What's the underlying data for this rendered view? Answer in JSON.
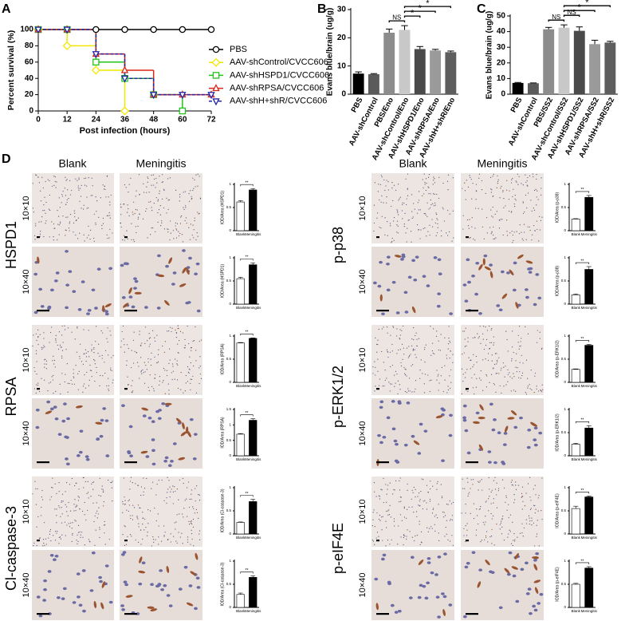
{
  "chart_data": [
    {
      "type": "line",
      "panel": "A",
      "step": true,
      "ylabel": "Percent survival (%)",
      "xlabel": "Post infection (hours)",
      "x": [
        0,
        12,
        24,
        36,
        48,
        60,
        72
      ],
      "xlim": [
        0,
        72
      ],
      "xticks": [
        0,
        12,
        24,
        36,
        48,
        60,
        72
      ],
      "ylim": [
        0,
        100
      ],
      "yticks": [
        0,
        20,
        40,
        60,
        80,
        100
      ],
      "legend": "right",
      "series": [
        {
          "name": "PBS",
          "color": "#000000",
          "marker": "circle",
          "values": [
            100,
            100,
            100,
            100,
            100,
            100,
            100
          ]
        },
        {
          "name": "AAV-shControl/CVCC606",
          "color": "#f5e600",
          "marker": "diamond",
          "values": [
            100,
            80,
            50,
            0,
            null,
            null,
            null
          ]
        },
        {
          "name": "AAV-shHSPD1/CVCC606",
          "color": "#22c41c",
          "marker": "square",
          "values": [
            100,
            100,
            60,
            40,
            20,
            0,
            null
          ]
        },
        {
          "name": "AAV-shRPSA/CVCC606",
          "color": "#d9261c",
          "marker": "triangle",
          "values": [
            100,
            100,
            70,
            50,
            20,
            20,
            20
          ]
        },
        {
          "name": "AAV-shH+shR/CVCC606",
          "color": "#2424a8",
          "marker": "triangle-down",
          "dashed": true,
          "values": [
            100,
            100,
            70,
            40,
            20,
            20,
            20
          ]
        }
      ]
    },
    {
      "type": "bar",
      "panel": "B",
      "ylabel": "Evans blue/brain (ug/g)",
      "ylim": [
        0,
        30
      ],
      "yticks": [
        0,
        10,
        20,
        30
      ],
      "categories": [
        "PBS",
        "AAV-shControl",
        "PBS/Eno",
        "AAV-shControl/Eno",
        "AAV-shHSPD1/Eno",
        "AAV-shRPSA/Eno",
        "AAV-shH+shR/Eno"
      ],
      "values": [
        7.3,
        7.1,
        21.8,
        22.8,
        16.0,
        15.5,
        14.9
      ],
      "errors": [
        0.6,
        0.2,
        1.3,
        1.5,
        0.9,
        0.4,
        0.4
      ],
      "colors": [
        "#000000",
        "#5a5a5a",
        "#8c8c8c",
        "#c8c8c8",
        "#4a4a4a",
        "#9a9a9a",
        "#5e5e5e"
      ],
      "brackets": [
        {
          "label": "NS",
          "pair": [
            2,
            3
          ]
        },
        {
          "label": "*",
          "pair": [
            3,
            4
          ]
        },
        {
          "label": "*",
          "pair": [
            3,
            5
          ]
        },
        {
          "label": "*",
          "pair": [
            3,
            6
          ]
        }
      ]
    },
    {
      "type": "bar",
      "panel": "C",
      "ylabel": "Evans blue/brain (ug/g)",
      "ylim": [
        0,
        50
      ],
      "yticks": [
        0,
        10,
        20,
        30,
        40,
        50
      ],
      "categories": [
        "PBS",
        "AAV-shControl",
        "PBS/SS2",
        "AAV-shControl/SS2",
        "AAV-shHSPD1/SS2",
        "AAV-shRPSA/SS2",
        "AAV-shH+shR/SS2"
      ],
      "values": [
        7.2,
        7.0,
        41.5,
        42.5,
        40.5,
        32.0,
        33.0
      ],
      "errors": [
        0.3,
        0.2,
        1.2,
        1.8,
        2.5,
        2.5,
        0.8
      ],
      "colors": [
        "#000000",
        "#5a5a5a",
        "#8c8c8c",
        "#c8c8c8",
        "#4a4a4a",
        "#9a9a9a",
        "#5e5e5e"
      ],
      "brackets": [
        {
          "label": "NS",
          "pair": [
            2,
            3
          ]
        },
        {
          "label": "NS",
          "pair": [
            3,
            4
          ]
        },
        {
          "label": "*",
          "pair": [
            3,
            5
          ]
        },
        {
          "label": "*",
          "pair": [
            3,
            6
          ]
        }
      ]
    },
    {
      "type": "small-bar",
      "ylabel": "IOD/Area (HSPD1)",
      "categories": [
        "Blank",
        "Meningitis"
      ],
      "values": [
        0.62,
        0.88
      ],
      "errors": [
        0.03,
        0.03
      ],
      "colors": [
        "#ffffff",
        "#000000"
      ],
      "ylim": [
        0,
        1
      ],
      "yticks": [
        0,
        0.5,
        1
      ],
      "brackets": [
        {
          "label": "**",
          "pair": [
            0,
            1
          ]
        }
      ]
    },
    {
      "type": "small-bar",
      "ylabel": "IOD/Area (HSPD1)",
      "categories": [
        "Blank",
        "Meningitis"
      ],
      "values": [
        0.55,
        0.85
      ],
      "errors": [
        0.03,
        0.04
      ],
      "colors": [
        "#ffffff",
        "#000000"
      ],
      "ylim": [
        0,
        1
      ],
      "yticks": [
        0,
        0.5,
        1
      ],
      "brackets": [
        {
          "label": "**",
          "pair": [
            0,
            1
          ]
        }
      ]
    },
    {
      "type": "small-bar",
      "ylabel": "IOD/Area (RPSA)",
      "categories": [
        "Blank",
        "Meningitis"
      ],
      "values": [
        0.85,
        0.95
      ],
      "errors": [
        0.01,
        0.01
      ],
      "colors": [
        "#ffffff",
        "#000000"
      ],
      "ylim": [
        0,
        1
      ],
      "yticks": [
        0,
        0.5,
        1
      ],
      "brackets": [
        {
          "label": "**",
          "pair": [
            0,
            1
          ]
        }
      ]
    },
    {
      "type": "small-bar",
      "ylabel": "IOD/Area (RPSA)",
      "categories": [
        "Blank",
        "Meningitis"
      ],
      "values": [
        0.7,
        1.15
      ],
      "errors": [
        0.02,
        0.05
      ],
      "colors": [
        "#ffffff",
        "#000000"
      ],
      "ylim": [
        0,
        1.5
      ],
      "yticks": [
        0,
        0.5,
        1,
        1.5
      ],
      "brackets": [
        {
          "label": "**",
          "pair": [
            0,
            1
          ]
        }
      ]
    },
    {
      "type": "small-bar",
      "ylabel": "IOD/Area (Cl-caspase-3)",
      "categories": [
        "Blank",
        "Meningitis"
      ],
      "values": [
        0.25,
        0.7
      ],
      "errors": [
        0.01,
        0.05
      ],
      "colors": [
        "#ffffff",
        "#000000"
      ],
      "ylim": [
        0,
        1
      ],
      "yticks": [
        0,
        0.5,
        1
      ],
      "brackets": [
        {
          "label": "**",
          "pair": [
            0,
            1
          ]
        }
      ]
    },
    {
      "type": "small-bar",
      "ylabel": "IOD/Area (Cl-caspase-3)",
      "categories": [
        "Blank",
        "Meningitis"
      ],
      "values": [
        0.28,
        0.65
      ],
      "errors": [
        0.03,
        0.03
      ],
      "colors": [
        "#ffffff",
        "#000000"
      ],
      "ylim": [
        0,
        1
      ],
      "yticks": [
        0,
        0.5,
        1
      ],
      "brackets": [
        {
          "label": "**",
          "pair": [
            0,
            1
          ]
        }
      ]
    },
    {
      "type": "small-bar",
      "ylabel": "IOD/Area (p-p38)",
      "categories": [
        "Blank",
        "Meningitis"
      ],
      "values": [
        0.25,
        0.72
      ],
      "errors": [
        0.01,
        0.04
      ],
      "colors": [
        "#ffffff",
        "#000000"
      ],
      "ylim": [
        0,
        1
      ],
      "yticks": [
        0,
        0.5,
        1
      ],
      "brackets": [
        {
          "label": "**",
          "pair": [
            0,
            1
          ]
        }
      ]
    },
    {
      "type": "small-bar",
      "ylabel": "IOD/Area (p-p38)",
      "categories": [
        "Blank",
        "Meningitis"
      ],
      "values": [
        0.2,
        0.75
      ],
      "errors": [
        0.02,
        0.06
      ],
      "colors": [
        "#ffffff",
        "#000000"
      ],
      "ylim": [
        0,
        1
      ],
      "yticks": [
        0,
        0.5,
        1
      ],
      "brackets": [
        {
          "label": "**",
          "pair": [
            0,
            1
          ]
        }
      ]
    },
    {
      "type": "small-bar",
      "ylabel": "IOD/Area (p-ERK1/2)",
      "categories": [
        "Blank",
        "Meningitis"
      ],
      "values": [
        0.28,
        0.8
      ],
      "errors": [
        0.01,
        0.02
      ],
      "colors": [
        "#ffffff",
        "#000000"
      ],
      "ylim": [
        0,
        1
      ],
      "yticks": [
        0,
        0.5,
        1
      ],
      "brackets": [
        {
          "label": "**",
          "pair": [
            0,
            1
          ]
        }
      ]
    },
    {
      "type": "small-bar",
      "ylabel": "IOD/Area (p-ERK1/2)",
      "categories": [
        "Blank",
        "Meningitis"
      ],
      "values": [
        0.25,
        0.6
      ],
      "errors": [
        0.02,
        0.05
      ],
      "colors": [
        "#ffffff",
        "#000000"
      ],
      "ylim": [
        0,
        1
      ],
      "yticks": [
        0,
        0.5,
        1
      ],
      "brackets": [
        {
          "label": "**",
          "pair": [
            0,
            1
          ]
        }
      ]
    },
    {
      "type": "small-bar",
      "ylabel": "IOD/Area (p-eIF4E)",
      "categories": [
        "Blank",
        "Meningitis"
      ],
      "values": [
        0.55,
        0.8
      ],
      "errors": [
        0.05,
        0.02
      ],
      "colors": [
        "#ffffff",
        "#000000"
      ],
      "ylim": [
        0,
        1
      ],
      "yticks": [
        0,
        0.5,
        1
      ],
      "brackets": [
        {
          "label": "**",
          "pair": [
            0,
            1
          ]
        }
      ]
    },
    {
      "type": "small-bar",
      "ylabel": "IOD/Area (p-eIF4E)",
      "categories": [
        "Blank",
        "Meningitis"
      ],
      "values": [
        0.5,
        0.85
      ],
      "errors": [
        0.02,
        0.03
      ],
      "colors": [
        "#ffffff",
        "#000000"
      ],
      "ylim": [
        0,
        1
      ],
      "yticks": [
        0,
        0.5,
        1
      ],
      "brackets": [
        {
          "label": "**",
          "pair": [
            0,
            1
          ]
        }
      ]
    }
  ],
  "panel_d": {
    "label": "D",
    "columns": [
      "Blank",
      "Meningitis"
    ],
    "magnifications": [
      "10×10",
      "10×40"
    ],
    "markers": [
      "HSPD1",
      "RPSA",
      "Cl-caspase-3",
      "p-p38",
      "p-ERK1/2",
      "p-eIF4E"
    ]
  }
}
